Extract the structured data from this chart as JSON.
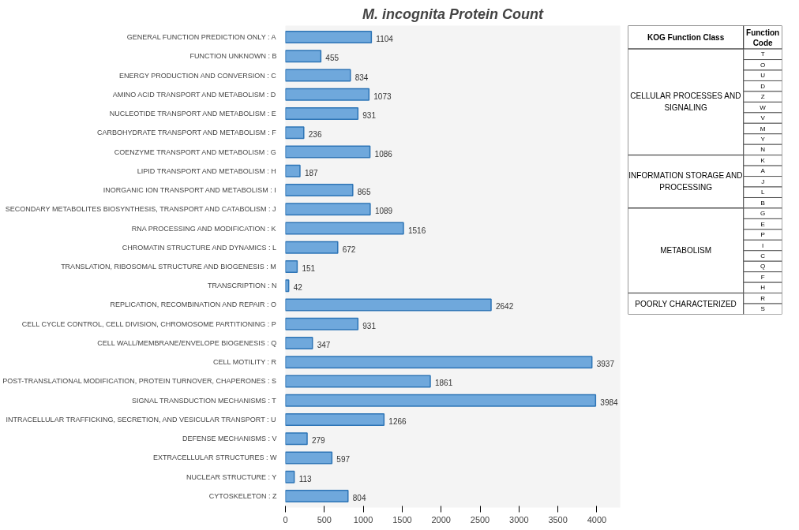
{
  "chart_data": [
    {
      "type": "bar",
      "orientation": "horizontal",
      "title": "M. incognita Protein Count",
      "categories": [
        "GENERAL FUNCTION PREDICTION ONLY : A",
        "FUNCTION UNKNOWN : B",
        "ENERGY PRODUCTION AND CONVERSION : C",
        "AMINO ACID TRANSPORT AND METABOLISM : D",
        "NUCLEOTIDE TRANSPORT AND METABOLISM : E",
        "CARBOHYDRATE TRANSPORT AND METABOLISM : F",
        "COENZYME TRANSPORT AND METABOLISM : G",
        "LIPID TRANSPORT AND METABOLISM : H",
        "INORGANIC ION TRANSPORT AND METABOLISM : I",
        "SECONDARY METABOLITES BIOSYNTHESIS, TRANSPORT AND CATABOLISM : J",
        "RNA PROCESSING AND MODIFICATION : K",
        "CHROMATIN STRUCTURE AND DYNAMICS : L",
        "TRANSLATION, RIBOSOMAL STRUCTURE AND BIOGENESIS : M",
        "TRANSCRIPTION : N",
        "REPLICATION, RECOMBINATION AND REPAIR : O",
        "CELL CYCLE CONTROL, CELL DIVISION, CHROMOSOME PARTITIONING : P",
        "CELL WALL/MEMBRANE/ENVELOPE BIOGENESIS : Q",
        "CELL MOTILITY : R",
        "POST-TRANSLATIONAL MODIFICATION, PROTEIN TURNOVER, CHAPERONES : S",
        "SIGNAL TRANSDUCTION MECHANISMS : T",
        "INTRACELLULAR TRAFFICKING, SECRETION, AND VESICULAR TRANSPORT : U",
        "DEFENSE MECHANISMS : V",
        "EXTRACELLULAR STRUCTURES : W",
        "NUCLEAR STRUCTURE : Y",
        "CYTOSKELETON : Z"
      ],
      "values": [
        1104,
        455,
        834,
        1073,
        931,
        236,
        1086,
        187,
        865,
        1089,
        1516,
        672,
        151,
        42,
        2642,
        931,
        347,
        3937,
        1861,
        3984,
        1266,
        279,
        597,
        113,
        804
      ],
      "color": "#6fa8dc",
      "xlim": [
        0,
        4300
      ],
      "xticks": [
        0,
        500,
        1000,
        1500,
        2000,
        2500,
        3000,
        3500,
        4000
      ],
      "data_labels": true,
      "grid": false
    },
    {
      "type": "other",
      "categories": [
        "KOG Function Class",
        "Function Code"
      ],
      "cells": [
        [
          "CELLULAR PROCESSES AND SIGNALING",
          "T"
        ],
        [
          null,
          "O"
        ],
        [
          null,
          "U"
        ],
        [
          null,
          "D"
        ],
        [
          null,
          "Z"
        ],
        [
          null,
          "W"
        ],
        [
          null,
          "V"
        ],
        [
          null,
          "M"
        ],
        [
          null,
          "Y"
        ],
        [
          null,
          "N"
        ],
        [
          "INFORMATION STORAGE AND PROCESSING",
          "K"
        ],
        [
          null,
          "A"
        ],
        [
          null,
          "J"
        ],
        [
          null,
          "L"
        ],
        [
          null,
          "B"
        ],
        [
          "METABOLISM",
          "G"
        ],
        [
          null,
          "E"
        ],
        [
          null,
          "P"
        ],
        [
          null,
          "I"
        ],
        [
          null,
          "C"
        ],
        [
          null,
          "Q"
        ],
        [
          null,
          "F"
        ],
        [
          null,
          "H"
        ],
        [
          "POORLY CHARACTERIZED",
          "R"
        ],
        [
          null,
          "S"
        ]
      ]
    }
  ]
}
